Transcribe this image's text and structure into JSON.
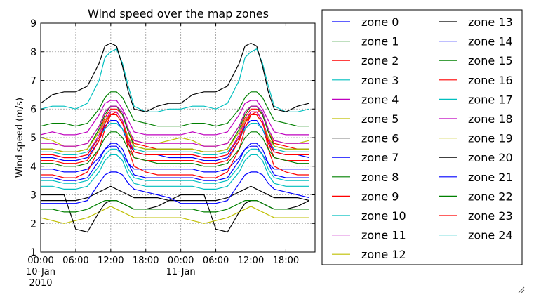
{
  "chart_data": {
    "type": "line",
    "title": "Wind speed over the map zones",
    "xlabel": "",
    "ylabel": "Wind speed (m/s)",
    "ylim": [
      1,
      9
    ],
    "xlim": [
      "2010-01-10 00:00",
      "2010-01-11 23:00"
    ],
    "grid": true,
    "legend_position": "right",
    "yticks": [
      "1",
      "2",
      "3",
      "4",
      "5",
      "6",
      "7",
      "8",
      "9"
    ],
    "xticks": [
      {
        "hour": 0,
        "label": "00:00",
        "sub": [
          "10-Jan",
          "2010"
        ]
      },
      {
        "hour": 6,
        "label": "06:00",
        "sub": []
      },
      {
        "hour": 12,
        "label": "12:00",
        "sub": []
      },
      {
        "hour": 18,
        "label": "18:00",
        "sub": []
      },
      {
        "hour": 24,
        "label": "00:00",
        "sub": [
          "11-Jan"
        ]
      },
      {
        "hour": 30,
        "label": "06:00",
        "sub": []
      },
      {
        "hour": 36,
        "label": "12:00",
        "sub": []
      },
      {
        "hour": 42,
        "label": "18:00",
        "sub": []
      }
    ],
    "x_hours": [
      0,
      2,
      4,
      6,
      8,
      10,
      11,
      12,
      13,
      14,
      15,
      16,
      18,
      20,
      22,
      24
    ],
    "series": [
      {
        "name": "zone 0",
        "color": "#0000ff",
        "values": [
          4.3,
          4.3,
          4.2,
          4.2,
          4.3,
          4.9,
          5.4,
          5.6,
          5.6,
          5.3,
          4.8,
          4.5,
          4.4,
          4.4,
          4.3,
          4.3
        ]
      },
      {
        "name": "zone 1",
        "color": "#008000",
        "values": [
          5.4,
          5.5,
          5.5,
          5.4,
          5.5,
          6.0,
          6.4,
          6.6,
          6.6,
          6.4,
          6.0,
          5.6,
          5.5,
          5.4,
          5.4,
          5.4
        ]
      },
      {
        "name": "zone 2",
        "color": "#ff0000",
        "values": [
          4.6,
          4.6,
          4.5,
          4.5,
          4.6,
          5.2,
          5.7,
          6.0,
          6.0,
          5.8,
          5.2,
          4.8,
          4.7,
          4.6,
          4.6,
          4.6
        ]
      },
      {
        "name": "zone 3",
        "color": "#00bfbf",
        "values": [
          6.0,
          6.1,
          6.1,
          6.0,
          6.2,
          7.0,
          7.8,
          8.0,
          8.1,
          7.6,
          6.8,
          6.1,
          5.9,
          5.9,
          6.0,
          6.0
        ]
      },
      {
        "name": "zone 4",
        "color": "#bf00bf",
        "values": [
          5.1,
          5.2,
          5.1,
          5.1,
          5.2,
          5.8,
          6.2,
          6.3,
          6.3,
          6.0,
          5.6,
          5.2,
          5.1,
          5.1,
          5.1,
          5.1
        ]
      },
      {
        "name": "zone 5",
        "color": "#bfbf00",
        "values": [
          5.0,
          4.9,
          4.7,
          4.7,
          4.8,
          5.4,
          5.9,
          6.1,
          6.1,
          5.8,
          5.2,
          4.9,
          4.8,
          4.8,
          4.9,
          5.0
        ]
      },
      {
        "name": "zone 6",
        "color": "#000000",
        "values": [
          6.2,
          6.5,
          6.6,
          6.6,
          6.8,
          7.6,
          8.2,
          8.3,
          8.2,
          7.5,
          6.6,
          6.0,
          5.9,
          6.1,
          6.2,
          6.2
        ]
      },
      {
        "name": "zone 7",
        "color": "#0000ff",
        "values": [
          3.9,
          3.9,
          3.8,
          3.8,
          3.9,
          4.3,
          4.6,
          4.7,
          4.7,
          4.4,
          4.1,
          3.9,
          3.9,
          3.9,
          3.9,
          3.9
        ]
      },
      {
        "name": "zone 8",
        "color": "#008000",
        "values": [
          4.6,
          4.6,
          4.5,
          4.5,
          4.6,
          5.3,
          5.8,
          6.1,
          6.1,
          5.8,
          5.2,
          4.7,
          4.6,
          4.6,
          4.6,
          4.6
        ]
      },
      {
        "name": "zone 9",
        "color": "#ff0000",
        "values": [
          3.7,
          3.7,
          3.6,
          3.6,
          3.8,
          4.6,
          5.3,
          5.8,
          5.9,
          5.6,
          4.6,
          4.0,
          3.8,
          3.7,
          3.7,
          3.7
        ]
      },
      {
        "name": "zone 10",
        "color": "#00bfbf",
        "values": [
          4.5,
          4.5,
          4.4,
          4.4,
          4.5,
          5.0,
          5.3,
          5.5,
          5.5,
          5.3,
          4.9,
          4.6,
          4.5,
          4.5,
          4.5,
          4.5
        ]
      },
      {
        "name": "zone 11",
        "color": "#bf00bf",
        "values": [
          4.8,
          4.8,
          4.7,
          4.7,
          4.8,
          5.4,
          5.9,
          6.1,
          6.1,
          5.9,
          5.3,
          4.9,
          4.8,
          4.8,
          4.8,
          4.8
        ]
      },
      {
        "name": "zone 12",
        "color": "#bfbf00",
        "values": [
          2.2,
          2.1,
          2.0,
          2.1,
          2.2,
          2.4,
          2.5,
          2.6,
          2.5,
          2.4,
          2.3,
          2.2,
          2.2,
          2.2,
          2.2,
          2.2
        ]
      },
      {
        "name": "zone 13",
        "color": "#000000",
        "values": [
          3.0,
          3.0,
          3.0,
          1.8,
          1.7,
          2.4,
          2.7,
          2.8,
          2.8,
          2.7,
          2.6,
          2.5,
          2.5,
          2.6,
          2.8,
          3.0
        ]
      },
      {
        "name": "zone 14",
        "color": "#0000ff",
        "values": [
          3.6,
          3.6,
          3.5,
          3.5,
          3.6,
          4.2,
          4.6,
          4.8,
          4.8,
          4.6,
          4.1,
          3.7,
          3.6,
          3.6,
          3.6,
          3.6
        ]
      },
      {
        "name": "zone 15",
        "color": "#008000",
        "values": [
          2.5,
          2.5,
          2.4,
          2.4,
          2.5,
          2.7,
          2.8,
          2.8,
          2.8,
          2.7,
          2.6,
          2.5,
          2.5,
          2.5,
          2.5,
          2.5
        ]
      },
      {
        "name": "zone 16",
        "color": "#ff0000",
        "values": [
          4.2,
          4.2,
          4.1,
          4.1,
          4.2,
          4.9,
          5.5,
          5.9,
          5.9,
          5.6,
          4.8,
          4.3,
          4.2,
          4.2,
          4.2,
          4.2
        ]
      },
      {
        "name": "zone 17",
        "color": "#00bfbf",
        "values": [
          3.3,
          3.3,
          3.2,
          3.2,
          3.3,
          3.8,
          4.2,
          4.4,
          4.4,
          4.2,
          3.7,
          3.4,
          3.3,
          3.3,
          3.3,
          3.3
        ]
      },
      {
        "name": "zone 18",
        "color": "#bf00bf",
        "values": [
          4.4,
          4.4,
          4.3,
          4.3,
          4.4,
          5.1,
          5.6,
          5.9,
          5.9,
          5.6,
          5.0,
          4.5,
          4.4,
          4.4,
          4.4,
          4.4
        ]
      },
      {
        "name": "zone 19",
        "color": "#bfbf00",
        "values": [
          4.6,
          4.6,
          4.5,
          4.5,
          4.6,
          5.2,
          5.6,
          5.8,
          5.8,
          5.5,
          5.0,
          4.7,
          4.6,
          4.6,
          4.6,
          4.6
        ]
      },
      {
        "name": "zone 20",
        "color": "#000000",
        "values": [
          2.8,
          2.8,
          2.8,
          2.8,
          2.9,
          3.1,
          3.2,
          3.3,
          3.2,
          3.1,
          3.0,
          2.9,
          2.9,
          2.9,
          2.8,
          2.8
        ]
      },
      {
        "name": "zone 21",
        "color": "#0000ff",
        "values": [
          2.7,
          2.7,
          2.7,
          2.7,
          2.8,
          3.4,
          3.7,
          3.8,
          3.8,
          3.7,
          3.4,
          3.2,
          3.1,
          3.0,
          2.9,
          2.7
        ]
      },
      {
        "name": "zone 22",
        "color": "#008000",
        "values": [
          4.1,
          4.1,
          4.0,
          4.0,
          4.1,
          4.6,
          5.0,
          5.2,
          5.2,
          5.0,
          4.6,
          4.3,
          4.2,
          4.1,
          4.1,
          4.1
        ]
      },
      {
        "name": "zone 23",
        "color": "#ff0000",
        "values": [
          4.4,
          4.4,
          4.3,
          4.3,
          4.4,
          5.0,
          5.5,
          5.8,
          5.8,
          5.5,
          4.9,
          4.5,
          4.4,
          4.4,
          4.4,
          4.4
        ]
      },
      {
        "name": "zone 24",
        "color": "#00bfbf",
        "values": [
          3.5,
          3.5,
          3.4,
          3.4,
          3.5,
          4.0,
          4.4,
          4.6,
          4.6,
          4.4,
          3.9,
          3.6,
          3.5,
          3.5,
          3.5,
          3.5
        ]
      }
    ]
  }
}
